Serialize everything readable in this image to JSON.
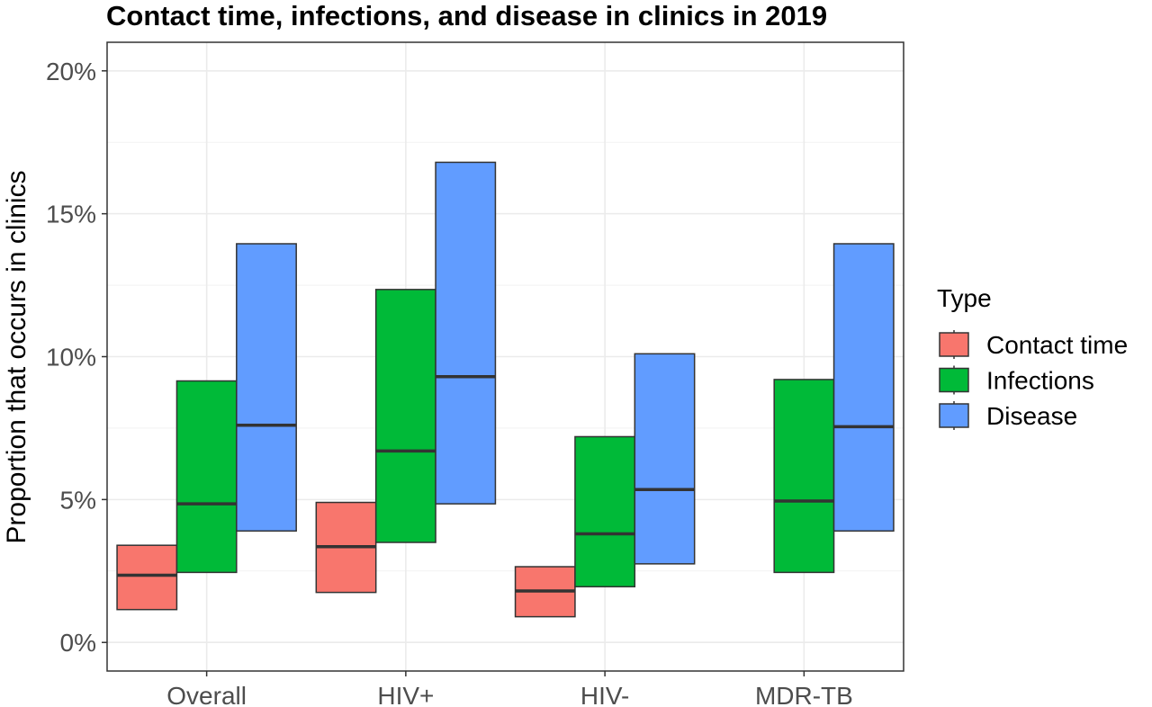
{
  "chart_data": {
    "type": "crossbar",
    "title": "Contact time, infections, and disease in clinics in 2019",
    "xlabel": "",
    "ylabel": "Proportion that occurs in clinics",
    "categories": [
      "Overall",
      "HIV+",
      "HIV-",
      "MDR-TB"
    ],
    "y_ticks": [
      "0%",
      "5%",
      "10%",
      "15%",
      "20%"
    ],
    "ylim": [
      -0.01,
      0.21
    ],
    "grid": true,
    "legend": {
      "title": "Type",
      "position": "right"
    },
    "series": [
      {
        "name": "Contact time",
        "color": "#F8766D",
        "data": [
          {
            "category": "Overall",
            "low": 0.0115,
            "mid": 0.0235,
            "high": 0.034
          },
          {
            "category": "HIV+",
            "low": 0.0175,
            "mid": 0.0335,
            "high": 0.049
          },
          {
            "category": "HIV-",
            "low": 0.009,
            "mid": 0.018,
            "high": 0.0265
          },
          null
        ]
      },
      {
        "name": "Infections",
        "color": "#00BA38",
        "data": [
          {
            "category": "Overall",
            "low": 0.0245,
            "mid": 0.0485,
            "high": 0.0915
          },
          {
            "category": "HIV+",
            "low": 0.035,
            "mid": 0.067,
            "high": 0.1235
          },
          {
            "category": "HIV-",
            "low": 0.0195,
            "mid": 0.038,
            "high": 0.072
          },
          {
            "category": "MDR-TB",
            "low": 0.0245,
            "mid": 0.0495,
            "high": 0.092
          }
        ]
      },
      {
        "name": "Disease",
        "color": "#619CFF",
        "data": [
          {
            "category": "Overall",
            "low": 0.039,
            "mid": 0.076,
            "high": 0.1395
          },
          {
            "category": "HIV+",
            "low": 0.0485,
            "mid": 0.093,
            "high": 0.168
          },
          {
            "category": "HIV-",
            "low": 0.0275,
            "mid": 0.0535,
            "high": 0.101
          },
          {
            "category": "MDR-TB",
            "low": 0.039,
            "mid": 0.0755,
            "high": 0.1395
          }
        ]
      }
    ]
  }
}
